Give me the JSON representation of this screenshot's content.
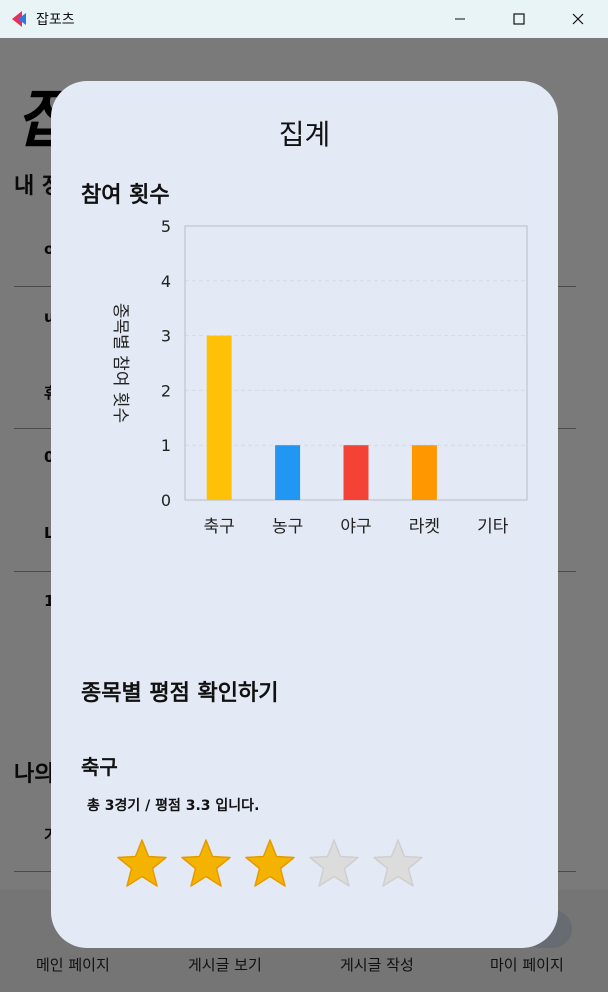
{
  "window": {
    "title": "잡포츠"
  },
  "background": {
    "logo": "잡포츠",
    "headings": [
      "내 정",
      "나의"
    ],
    "rows": [
      "o",
      "u",
      "휴",
      "0",
      "L",
      "1",
      "가"
    ]
  },
  "nav": {
    "items": [
      "메인 페이지",
      "게시글 보기",
      "게시글 작성",
      "마이 페이지"
    ]
  },
  "modal": {
    "title": "집계",
    "participation_title": "참여 횟수",
    "rating_section_title": "종목별 평점 확인하기",
    "sport_name": "축구",
    "summary": "총 3경기 / 평점 3.3 입니다.",
    "rating": {
      "value": 3.3,
      "filled_stars": 3,
      "max_stars": 5
    }
  },
  "colors": {
    "star_filled": "#f5b301",
    "star_empty": "#dcdcdc",
    "modal_bg": "#e3eaf5"
  },
  "chart_data": {
    "type": "bar",
    "categories": [
      "축구",
      "농구",
      "야구",
      "라켓",
      "기타"
    ],
    "values": [
      3,
      1,
      1,
      1,
      0
    ],
    "colors": [
      "#ffc107",
      "#2196f3",
      "#f44336",
      "#ff9800",
      "#9e9e9e"
    ],
    "ylabel": "종목별 참여 횟수",
    "ylim": [
      0,
      5
    ],
    "yticks": [
      "0",
      "1",
      "2",
      "3",
      "4",
      "5"
    ],
    "grid": true
  }
}
